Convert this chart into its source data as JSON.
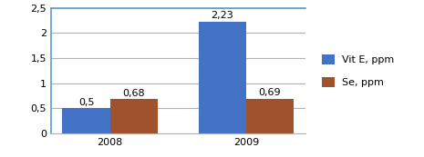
{
  "categories": [
    "2008",
    "2009"
  ],
  "vit_e_values": [
    0.5,
    2.23
  ],
  "se_values": [
    0.68,
    0.69
  ],
  "vit_e_label": "Vit E, ppm",
  "se_label": "Se, ppm",
  "vit_e_color": "#4472C4",
  "se_color": "#A0522D",
  "ylim": [
    0,
    2.5
  ],
  "yticks": [
    0,
    0.5,
    1.0,
    1.5,
    2.0,
    2.5
  ],
  "ytick_labels": [
    "0",
    "0,5",
    "1",
    "1,5",
    "2",
    "2,5"
  ],
  "bar_width": 0.35,
  "label_fontsize": 8,
  "tick_fontsize": 8,
  "legend_fontsize": 8,
  "background_color": "#ffffff",
  "grid_color": "#b0b0b0",
  "spine_color": "#5B9BD5"
}
